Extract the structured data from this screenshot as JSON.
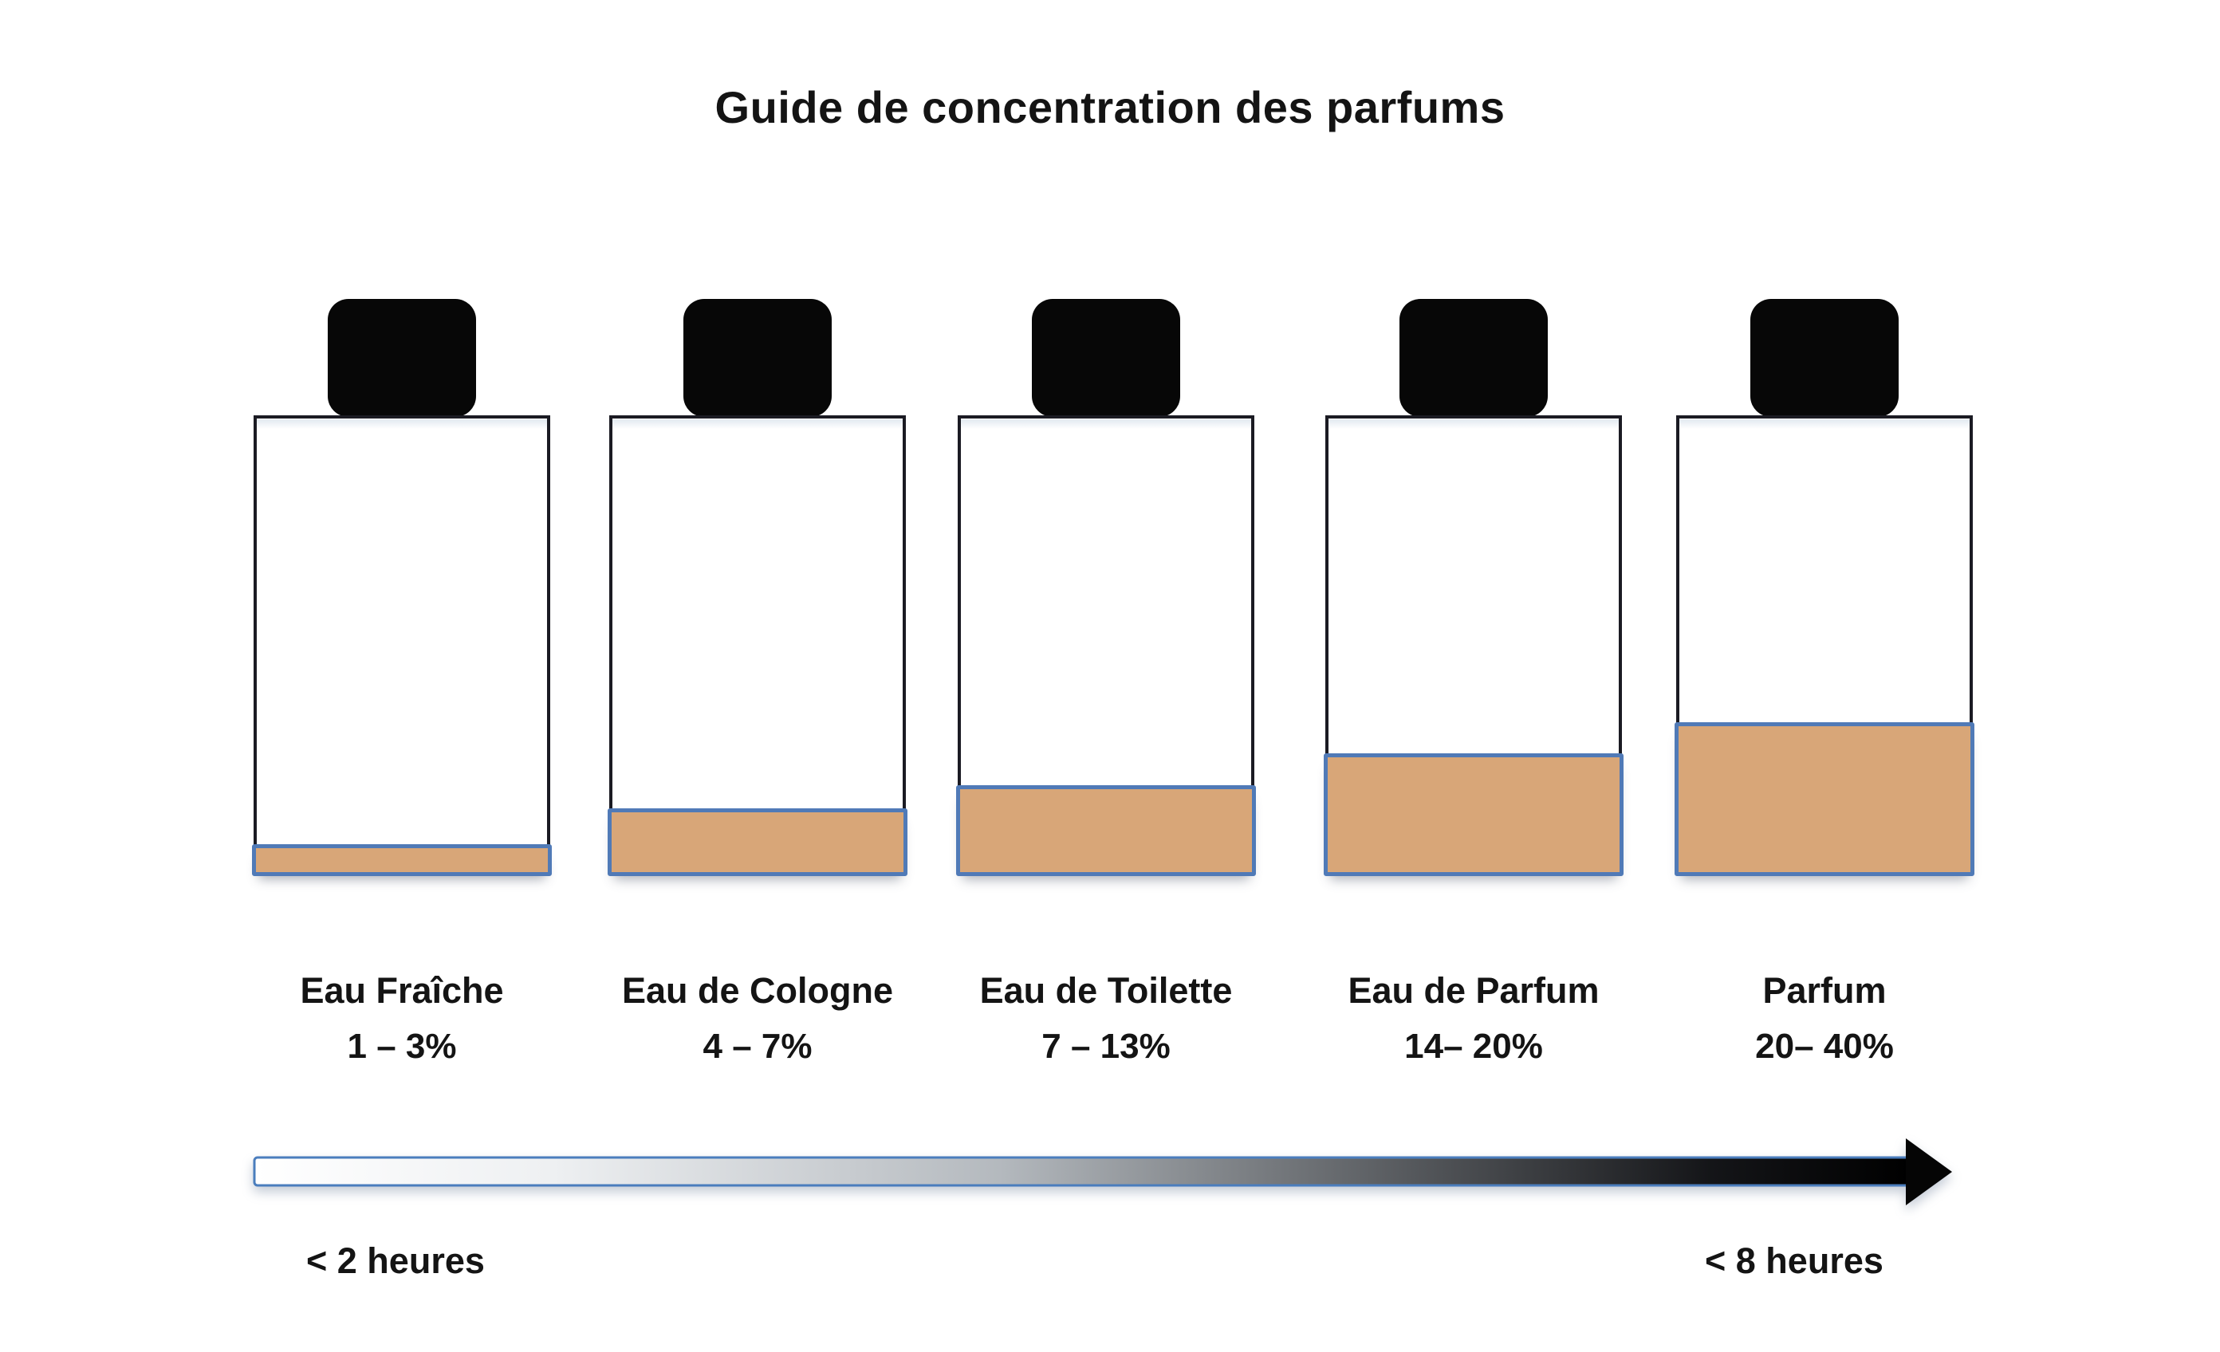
{
  "title": "Guide de concentration des parfums",
  "colors": {
    "text": "#141414",
    "cap": "#070707",
    "bottle_outline": "#1b1b23",
    "liquid": "#d8a678",
    "liquid_border": "#507ab7",
    "arrow_border": "#4a7dbd"
  },
  "bottles": [
    {
      "name": "Eau Fraîche",
      "range": "1 – 3%",
      "fill_level": 7
    },
    {
      "name": "Eau de Cologne",
      "range": "4 – 7%",
      "fill_level": 15
    },
    {
      "name": "Eau de Toilette",
      "range": "7 – 13%",
      "fill_level": 20
    },
    {
      "name": "Eau de Parfum",
      "range": "14– 20%",
      "fill_level": 27
    },
    {
      "name": "Parfum",
      "range": "20– 40%",
      "fill_level": 34
    }
  ],
  "timeline": {
    "start_label": "< 2 heures",
    "end_label": "< 8 heures"
  }
}
